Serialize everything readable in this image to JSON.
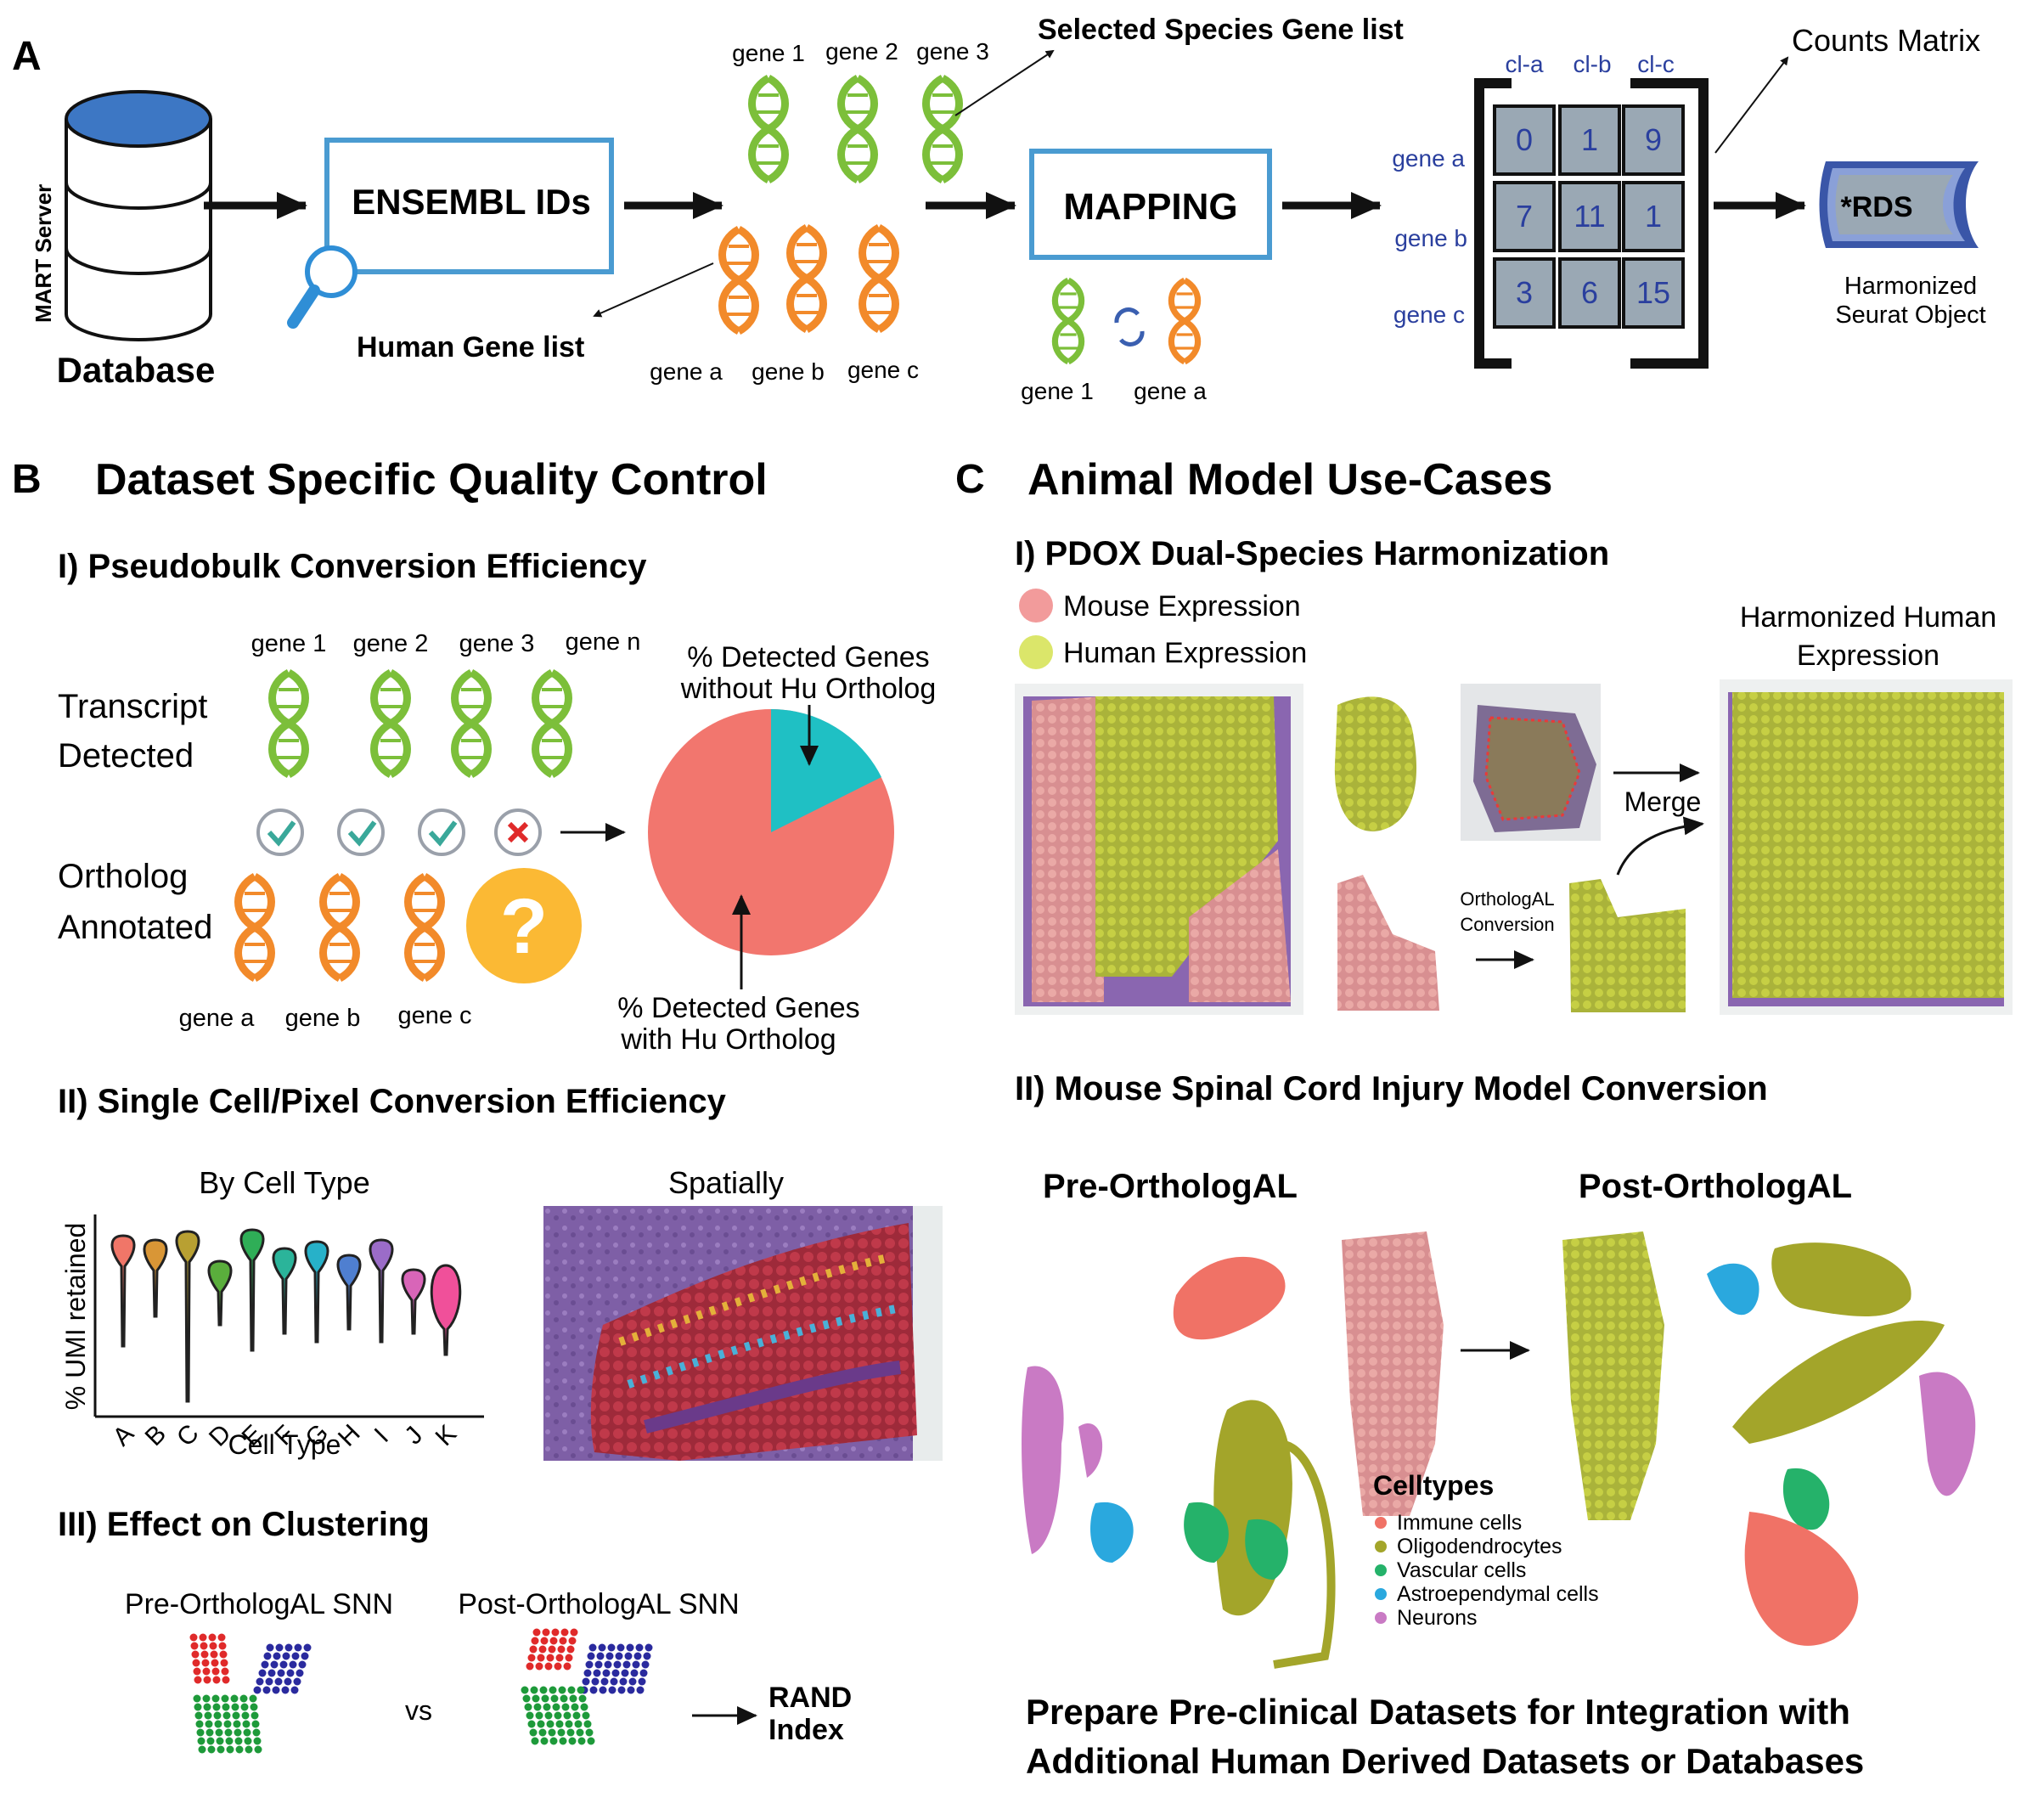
{
  "panel_a": {
    "letter": "A",
    "db_label": "Database",
    "server_label": "MART Server",
    "ensembl": "ENSEMBL IDs",
    "selected_list": "Selected Species Gene list",
    "human_list": "Human Gene list",
    "mapping": "MAPPING",
    "species_genes": [
      "gene 1",
      "gene 2",
      "gene 3"
    ],
    "human_genes": [
      "gene a",
      "gene b",
      "gene c"
    ],
    "map_genes": [
      "gene 1",
      "gene a"
    ],
    "counts_label": "Counts Matrix",
    "cols": [
      "cl-a",
      "cl-b",
      "cl-c"
    ],
    "rows": [
      "gene a",
      "gene b",
      "gene c"
    ],
    "matrix": [
      [
        "0",
        "1",
        "9"
      ],
      [
        "7",
        "11",
        "1"
      ],
      [
        "3",
        "6",
        "15"
      ]
    ],
    "rds": "*RDS",
    "harmonized_1": "Harmonized",
    "harmonized_2": "Seurat Object"
  },
  "panel_b": {
    "letter": "B",
    "title": "Dataset Specific Quality Control",
    "s1": "I)  Pseudobulk Conversion Efficiency",
    "transcript_1": "Transcript",
    "transcript_2": "Detected",
    "ortholog_1": "Ortholog",
    "ortholog_2": "Annotated",
    "top_genes": [
      "gene 1",
      "gene 2",
      "gene 3",
      "gene n"
    ],
    "bottom_genes": [
      "gene a",
      "gene b",
      "gene c"
    ],
    "pie_top_1": "% Detected Genes",
    "pie_top_2": "without Hu Ortholog",
    "pie_bot_1": "% Detected Genes",
    "pie_bot_2": "with Hu Ortholog",
    "question": "?",
    "s2": "II)  Single Cell/Pixel Conversion Efficiency",
    "by_cell": "By Cell Type",
    "spatially": "Spatially",
    "umi_label": "% UMI retained",
    "cell_type_label": "Cell Type",
    "violin_letters": [
      "A",
      "B",
      "C",
      "D",
      "E",
      "F",
      "G",
      "H",
      "I",
      "J",
      "K"
    ],
    "violin_colors": [
      "#f07668",
      "#d99636",
      "#b8a032",
      "#5aae3c",
      "#2fae57",
      "#2bb49a",
      "#27b1c9",
      "#4f7fd0",
      "#9b6cc8",
      "#d865b8",
      "#f0509a"
    ],
    "s3": "III)  Effect on Clustering",
    "pre_snn": "Pre-OrthologAL SNN",
    "post_snn": "Post-OrthologAL SNN",
    "vs": "vs",
    "rand_1": "RAND",
    "rand_2": "Index"
  },
  "panel_c": {
    "letter": "C",
    "title": "Animal Model Use-Cases",
    "s1": "I)  PDOX Dual-Species Harmonization",
    "mouse_expr": "Mouse Expression",
    "human_expr": "Human Expression",
    "harm_human_1": "Harmonized Human",
    "harm_human_2": "Expression",
    "merge": "Merge",
    "conv_1": "OrthologAL",
    "conv_2": "Conversion",
    "s2": "II)  Mouse Spinal Cord Injury Model Conversion",
    "pre": "Pre-OrthologAL",
    "post": "Post-OrthologAL",
    "legend_title": "Celltypes",
    "legend": [
      {
        "label": "Immune cells",
        "color": "#f07266"
      },
      {
        "label": "Oligodendrocytes",
        "color": "#a3a52a"
      },
      {
        "label": "Vascular cells",
        "color": "#25b26a"
      },
      {
        "label": "Astroependymal cells",
        "color": "#2aa8de"
      },
      {
        "label": "Neurons",
        "color": "#c97ac4"
      }
    ],
    "footer_1": "Prepare Pre-clinical Datasets for Integration with",
    "footer_2": "Additional Human Derived Datasets or Databases"
  },
  "colors": {
    "green_dna": "#7cbf3a",
    "orange_dna": "#f28a2a",
    "blue_box": "#4a9bd1",
    "pie_red": "#f07a72",
    "pie_teal": "#1fc0c4",
    "olive": "#bcc93a",
    "tissue": "#8a6aa6"
  }
}
